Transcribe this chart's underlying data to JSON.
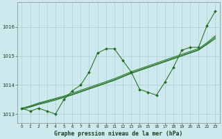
{
  "wavy_line": [
    1013.2,
    1013.1,
    1013.2,
    1013.1,
    1013.0,
    1013.5,
    1013.8,
    1014.0,
    1014.45,
    1015.1,
    1015.25,
    1015.25,
    1014.85,
    1014.45,
    1013.85,
    1013.75,
    1013.65,
    1014.1,
    1014.6,
    1015.2,
    1015.3,
    1015.3,
    1016.05,
    1016.55
  ],
  "trend1": [
    1013.2,
    1013.28,
    1013.38,
    1013.46,
    1013.54,
    1013.62,
    1013.72,
    1013.82,
    1013.92,
    1014.02,
    1014.12,
    1014.22,
    1014.34,
    1014.46,
    1014.56,
    1014.66,
    1014.76,
    1014.86,
    1014.96,
    1015.06,
    1015.16,
    1015.26,
    1015.46,
    1015.7
  ],
  "trend2": [
    1013.2,
    1013.26,
    1013.35,
    1013.43,
    1013.51,
    1013.59,
    1013.68,
    1013.78,
    1013.88,
    1013.98,
    1014.08,
    1014.18,
    1014.3,
    1014.42,
    1014.52,
    1014.62,
    1014.72,
    1014.82,
    1014.92,
    1015.02,
    1015.12,
    1015.22,
    1015.42,
    1015.65
  ],
  "trend3": [
    1013.15,
    1013.24,
    1013.33,
    1013.4,
    1013.48,
    1013.57,
    1013.66,
    1013.76,
    1013.86,
    1013.96,
    1014.06,
    1014.16,
    1014.28,
    1014.4,
    1014.5,
    1014.6,
    1014.7,
    1014.8,
    1014.9,
    1015.0,
    1015.1,
    1015.2,
    1015.4,
    1015.6
  ],
  "line_color": "#1e6e1e",
  "bg_color": "#cde9ed",
  "grid_color": "#aacdd4",
  "xlabel": "Graphe pression niveau de la mer (hPa)",
  "ylim": [
    1012.7,
    1016.85
  ],
  "xlim": [
    -0.5,
    23.5
  ],
  "yticks": [
    1013,
    1014,
    1015,
    1016
  ],
  "xticks": [
    0,
    1,
    2,
    3,
    4,
    5,
    6,
    7,
    8,
    9,
    10,
    11,
    12,
    13,
    14,
    15,
    16,
    17,
    18,
    19,
    20,
    21,
    22,
    23
  ]
}
